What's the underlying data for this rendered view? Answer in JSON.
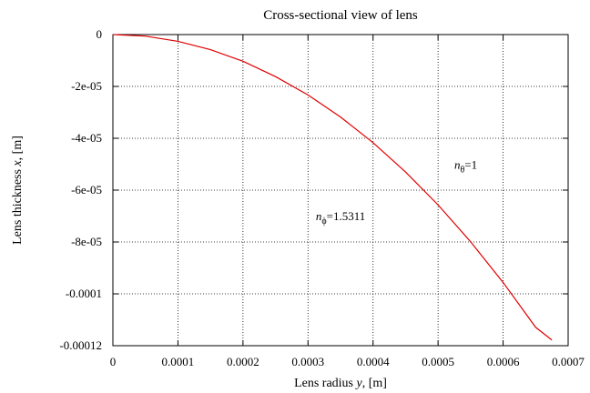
{
  "chart_data": {
    "type": "line",
    "title": "Cross-sectional view of lens",
    "xlabel": {
      "prefix": "Lens radius ",
      "var": "y",
      "suffix": ", [m]"
    },
    "ylabel": {
      "prefix": "Lens thickness ",
      "var": "x",
      "suffix": ", [m]"
    },
    "xlim": [
      0,
      0.0007
    ],
    "ylim": [
      -0.00012,
      0
    ],
    "x_ticks": [
      0,
      0.0001,
      0.0002,
      0.0003,
      0.0004,
      0.0005,
      0.0006,
      0.0007
    ],
    "x_tick_labels": [
      "0",
      "0.0001",
      "0.0002",
      "0.0003",
      "0.0004",
      "0.0005",
      "0.0006",
      "0.0007"
    ],
    "y_ticks": [
      0,
      -2e-05,
      -4e-05,
      -6e-05,
      -8e-05,
      -0.0001,
      -0.00012
    ],
    "y_tick_labels": [
      "0",
      "-2e-05",
      "-4e-05",
      "-6e-05",
      "-8e-05",
      "-0.0001",
      "-0.00012"
    ],
    "grid": true,
    "series": [
      {
        "color": "#e00000",
        "x": [
          0,
          5e-05,
          0.0001,
          0.00015,
          0.0002,
          0.00025,
          0.0003,
          0.00035,
          0.0004,
          0.00045,
          0.0005,
          0.00055,
          0.0006,
          0.00065,
          0.000675
        ],
        "y": [
          0,
          -6e-07,
          -2.6e-06,
          -5.8e-06,
          -1.03e-05,
          -1.62e-05,
          -2.33e-05,
          -3.18e-05,
          -4.17e-05,
          -5.3e-05,
          -6.57e-05,
          -7.99e-05,
          -9.56e-05,
          -0.0001129,
          -0.0001178
        ]
      }
    ],
    "annotations": [
      {
        "symbol": "n",
        "sub": "θ",
        "text": "=1",
        "at": [
          0.000525,
          -5.18e-05
        ]
      },
      {
        "symbol": "n",
        "sub": "ϕ",
        "text": "=1.5311",
        "at": [
          0.000312,
          -7.16e-05
        ]
      }
    ]
  }
}
